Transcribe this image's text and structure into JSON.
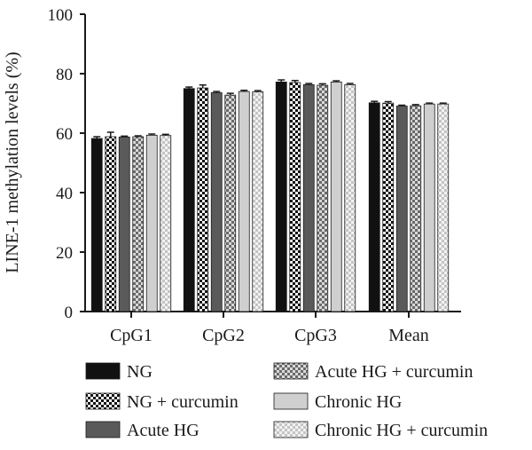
{
  "chart_data": {
    "type": "bar",
    "title": "",
    "xlabel": "",
    "ylabel": "LINE-1 methylation levels (%)",
    "ylim": [
      0,
      100
    ],
    "yticks": [
      0,
      20,
      40,
      60,
      80,
      100
    ],
    "categories": [
      "CpG1",
      "CpG2",
      "CpG3",
      "Mean"
    ],
    "grid": false,
    "legend_position": "bottom",
    "series": [
      {
        "name": "NG",
        "values": [
          58.2,
          75.0,
          77.2,
          70.2
        ],
        "errors": [
          0.6,
          0.5,
          0.7,
          0.5
        ],
        "fill": "#111111",
        "pattern": "solid"
      },
      {
        "name": "NG + curcumin",
        "values": [
          58.8,
          75.2,
          77.0,
          70.1
        ],
        "errors": [
          1.5,
          1.0,
          0.7,
          0.5
        ],
        "fill": "#111111",
        "pattern": "checker"
      },
      {
        "name": "Acute HG",
        "values": [
          58.7,
          73.6,
          76.3,
          69.1
        ],
        "errors": [
          0.3,
          0.4,
          0.4,
          0.3
        ],
        "fill": "#5a5a5a",
        "pattern": "solid"
      },
      {
        "name": "Acute HG + curcumin",
        "values": [
          58.8,
          72.8,
          76.1,
          69.2
        ],
        "errors": [
          0.3,
          0.6,
          0.5,
          0.4
        ],
        "fill": "#777777",
        "pattern": "checker"
      },
      {
        "name": "Chronic HG",
        "values": [
          59.3,
          74.0,
          77.2,
          69.8
        ],
        "errors": [
          0.4,
          0.4,
          0.4,
          0.3
        ],
        "fill": "#cfcfcf",
        "pattern": "solid"
      },
      {
        "name": "Chronic HG + curcumin",
        "values": [
          59.2,
          73.9,
          76.3,
          69.8
        ],
        "errors": [
          0.4,
          0.4,
          0.4,
          0.3
        ],
        "fill": "#bdbdbd",
        "pattern": "checker-light"
      }
    ]
  }
}
